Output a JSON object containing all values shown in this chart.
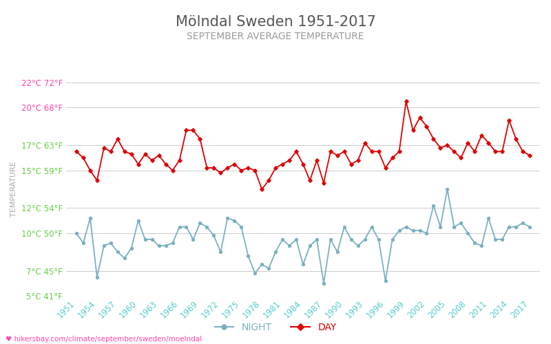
{
  "title": "Mölndal Sweden 1951-2017",
  "subtitle": "SEPTEMBER AVERAGE TEMPERATURE",
  "ylabel": "TEMPERATURE",
  "xlabel_url": "♥ hikersbay.com/climate/september/sweden/moelndal",
  "legend_night": "NIGHT",
  "legend_day": "DAY",
  "years": [
    1951,
    1952,
    1953,
    1954,
    1955,
    1956,
    1957,
    1958,
    1959,
    1960,
    1961,
    1962,
    1963,
    1964,
    1965,
    1966,
    1967,
    1968,
    1969,
    1970,
    1971,
    1972,
    1973,
    1974,
    1975,
    1976,
    1977,
    1978,
    1979,
    1980,
    1981,
    1982,
    1983,
    1984,
    1985,
    1986,
    1987,
    1988,
    1989,
    1990,
    1991,
    1992,
    1993,
    1994,
    1995,
    1996,
    1997,
    1998,
    1999,
    2000,
    2001,
    2002,
    2003,
    2004,
    2005,
    2006,
    2007,
    2008,
    2009,
    2010,
    2011,
    2012,
    2013,
    2014,
    2015,
    2016,
    2017
  ],
  "day": [
    16.5,
    16.0,
    15.0,
    14.2,
    16.8,
    16.5,
    17.5,
    16.5,
    16.3,
    15.5,
    16.3,
    15.8,
    16.2,
    15.5,
    15.0,
    15.8,
    18.2,
    18.2,
    17.5,
    15.2,
    15.2,
    14.8,
    15.2,
    15.5,
    15.0,
    15.2,
    15.0,
    13.5,
    14.2,
    15.2,
    15.5,
    15.8,
    16.5,
    15.5,
    14.2,
    15.8,
    14.0,
    16.5,
    16.2,
    16.5,
    15.5,
    15.8,
    17.2,
    16.5,
    16.5,
    15.2,
    16.0,
    16.5,
    20.5,
    18.2,
    19.2,
    18.5,
    17.5,
    16.8,
    17.0,
    16.5,
    16.0,
    17.2,
    16.5,
    17.8,
    17.2,
    16.5,
    16.5,
    19.0,
    17.5,
    16.5,
    16.2
  ],
  "night": [
    10.0,
    9.2,
    11.2,
    6.5,
    9.0,
    9.2,
    8.5,
    8.0,
    8.8,
    11.0,
    9.5,
    9.5,
    9.0,
    9.0,
    9.2,
    10.5,
    10.5,
    9.5,
    10.8,
    10.5,
    9.8,
    8.5,
    11.2,
    11.0,
    10.5,
    8.2,
    6.8,
    7.5,
    7.2,
    8.5,
    9.5,
    9.0,
    9.5,
    7.5,
    9.0,
    9.5,
    6.0,
    9.5,
    8.5,
    10.5,
    9.5,
    9.0,
    9.5,
    10.5,
    9.5,
    6.2,
    9.5,
    10.2,
    10.5,
    10.2,
    10.2,
    10.0,
    12.2,
    10.5,
    13.5,
    10.5,
    10.8,
    10.0,
    9.2,
    9.0,
    11.2,
    9.5,
    9.5,
    10.5,
    10.5,
    10.8,
    10.5
  ],
  "ylim": [
    5,
    22
  ],
  "yticks_c": [
    5,
    7,
    10,
    12,
    15,
    17,
    20,
    22
  ],
  "yticks_f": [
    41,
    45,
    50,
    54,
    59,
    63,
    68,
    72
  ],
  "xticks": [
    1951,
    1954,
    1957,
    1960,
    1963,
    1966,
    1969,
    1972,
    1975,
    1978,
    1981,
    1984,
    1987,
    1990,
    1993,
    1996,
    1999,
    2002,
    2005,
    2008,
    2011,
    2014,
    2017
  ],
  "day_color": "#dd0000",
  "night_color": "#7aafc0",
  "grid_color": "#cccccc",
  "title_color": "#555555",
  "subtitle_color": "#999999",
  "ylabel_color": "#aaaaaa",
  "ytick_color_pink": "#ff44aa",
  "ytick_color_green": "#66cc44",
  "xtick_color": "#55cccc",
  "bg_color": "#ffffff",
  "url_color": "#ff44aa",
  "title_fontsize": 15,
  "subtitle_fontsize": 10,
  "axis_label_fontsize": 8,
  "tick_fontsize": 8.5,
  "legend_fontsize": 10
}
